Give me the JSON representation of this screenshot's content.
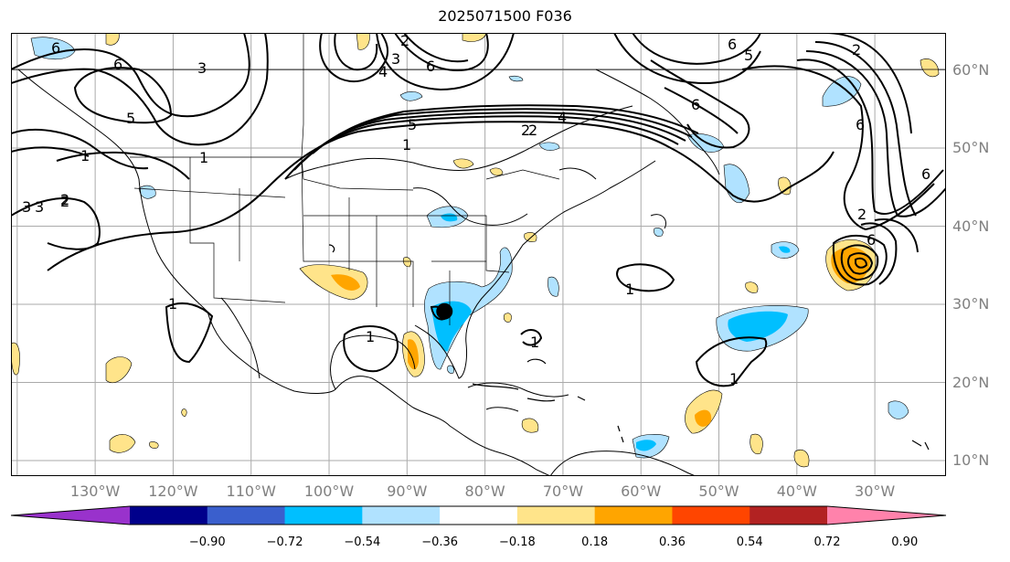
{
  "title": "2025071500 F036",
  "map": {
    "lon_labels": [
      {
        "text": "130°W",
        "lon": -130
      },
      {
        "text": "120°W",
        "lon": -120
      },
      {
        "text": "110°W",
        "lon": -110
      },
      {
        "text": "100°W",
        "lon": -100
      },
      {
        "text": "90°W",
        "lon": -90
      },
      {
        "text": "80°W",
        "lon": -80
      },
      {
        "text": "70°W",
        "lon": -70
      },
      {
        "text": "60°W",
        "lon": -60
      },
      {
        "text": "50°W",
        "lon": -50
      },
      {
        "text": "40°W",
        "lon": -40
      },
      {
        "text": "30°W",
        "lon": -30
      }
    ],
    "lat_labels": [
      {
        "text": "60°N",
        "lat": 60
      },
      {
        "text": "50°N",
        "lat": 50
      },
      {
        "text": "40°N",
        "lat": 40
      },
      {
        "text": "30°N",
        "lat": 30
      },
      {
        "text": "20°N",
        "lat": 20
      },
      {
        "text": "10°N",
        "lat": 10
      }
    ],
    "contour_labels": [
      "6",
      "6",
      "5",
      "3",
      "3",
      "2",
      "6",
      "4",
      "2",
      "3",
      "6",
      "5",
      "6",
      "5",
      "4",
      "2",
      "1",
      "1",
      "1",
      "3",
      "2",
      "1",
      "1",
      "1",
      "1",
      "2",
      "6",
      "6",
      "2",
      "6",
      "2",
      "1"
    ],
    "storm_marker": {
      "lon": -85.2,
      "lat": 29.1,
      "color": "#000000"
    }
  },
  "colorbar": {
    "colors": [
      "#9932cc",
      "#00008b",
      "#3a5fcd",
      "#00bfff",
      "#b0e2ff",
      "#ffffff",
      "#ffe48a",
      "#ffa500",
      "#ff4500",
      "#b22222",
      "#ff82ab"
    ],
    "ticks": [
      "−0.90",
      "−0.72",
      "−0.54",
      "−0.36",
      "−0.18",
      "0.18",
      "0.36",
      "0.54",
      "0.72",
      "0.90"
    ]
  }
}
